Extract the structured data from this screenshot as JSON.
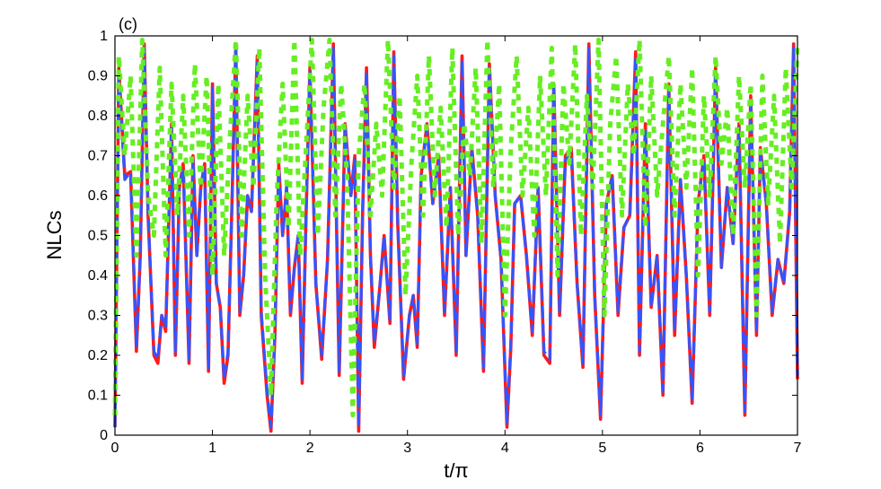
{
  "chart_data": {
    "type": "line",
    "panel_label": "(c)",
    "xlabel": "t/π",
    "ylabel": "NLCs",
    "xlim": [
      0,
      7
    ],
    "ylim": [
      0,
      1
    ],
    "xticks": [
      "0",
      "1",
      "2",
      "3",
      "4",
      "5",
      "6",
      "7"
    ],
    "yticks": [
      "0",
      "0.1",
      "0.2",
      "0.3",
      "0.4",
      "0.5",
      "0.6",
      "0.7",
      "0.8",
      "0.9",
      "1"
    ],
    "grid": false,
    "series": [
      {
        "color": "#ff1a1a",
        "style": "solid",
        "x": [
          0,
          0.04,
          0.1,
          0.16,
          0.22,
          0.26,
          0.3,
          0.34,
          0.4,
          0.44,
          0.48,
          0.52,
          0.58,
          0.62,
          0.66,
          0.7,
          0.76,
          0.8,
          0.84,
          0.88,
          0.92,
          0.96,
          1.0,
          1.04,
          1.08,
          1.12,
          1.16,
          1.2,
          1.24,
          1.28,
          1.32,
          1.36,
          1.4,
          1.46,
          1.5,
          1.56,
          1.6,
          1.64,
          1.68,
          1.72,
          1.76,
          1.8,
          1.84,
          1.88,
          1.92,
          1.96,
          2.0,
          2.06,
          2.12,
          2.18,
          2.24,
          2.3,
          2.36,
          2.42,
          2.46,
          2.5,
          2.54,
          2.58,
          2.62,
          2.66,
          2.72,
          2.76,
          2.82,
          2.86,
          2.9,
          2.96,
          3.02,
          3.06,
          3.1,
          3.14,
          3.2,
          3.26,
          3.32,
          3.38,
          3.44,
          3.5,
          3.56,
          3.6,
          3.66,
          3.72,
          3.78,
          3.84,
          3.9,
          3.96,
          4.02,
          4.06,
          4.1,
          4.16,
          4.22,
          4.28,
          4.34,
          4.4,
          4.46,
          4.5,
          4.56,
          4.62,
          4.68,
          4.74,
          4.8,
          4.86,
          4.92,
          4.98,
          5.04,
          5.1,
          5.16,
          5.22,
          5.28,
          5.34,
          5.38,
          5.44,
          5.5,
          5.56,
          5.62,
          5.68,
          5.74,
          5.8,
          5.86,
          5.92,
          5.98,
          6.04,
          6.1,
          6.16,
          6.22,
          6.28,
          6.34,
          6.4,
          6.46,
          6.52,
          6.58,
          6.62,
          6.68,
          6.74,
          6.8,
          6.86,
          6.92,
          6.96,
          7.0
        ],
        "y": [
          0.02,
          0.92,
          0.65,
          0.66,
          0.21,
          0.45,
          0.98,
          0.55,
          0.2,
          0.18,
          0.3,
          0.26,
          0.78,
          0.2,
          0.62,
          0.68,
          0.18,
          0.7,
          0.45,
          0.62,
          0.68,
          0.16,
          0.88,
          0.38,
          0.32,
          0.13,
          0.2,
          0.58,
          0.98,
          0.3,
          0.4,
          0.6,
          0.56,
          0.95,
          0.3,
          0.1,
          0.01,
          0.25,
          0.68,
          0.5,
          0.62,
          0.3,
          0.42,
          0.5,
          0.13,
          0.55,
          0.92,
          0.38,
          0.19,
          0.44,
          0.98,
          0.15,
          0.78,
          0.6,
          0.7,
          0.01,
          0.56,
          0.92,
          0.45,
          0.22,
          0.38,
          0.5,
          0.28,
          0.96,
          0.53,
          0.14,
          0.3,
          0.35,
          0.22,
          0.65,
          0.78,
          0.58,
          0.7,
          0.3,
          0.62,
          0.2,
          0.95,
          0.45,
          0.72,
          0.55,
          0.16,
          0.93,
          0.6,
          0.44,
          0.02,
          0.22,
          0.58,
          0.6,
          0.45,
          0.25,
          0.62,
          0.2,
          0.18,
          0.88,
          0.3,
          0.7,
          0.72,
          0.38,
          0.17,
          0.98,
          0.35,
          0.04,
          0.58,
          0.65,
          0.3,
          0.52,
          0.55,
          0.96,
          0.2,
          0.78,
          0.32,
          0.45,
          0.1,
          0.88,
          0.25,
          0.64,
          0.4,
          0.08,
          0.58,
          0.7,
          0.3,
          0.92,
          0.42,
          0.62,
          0.48,
          0.78,
          0.05,
          0.85,
          0.25,
          0.72,
          0.58,
          0.3,
          0.44,
          0.38,
          0.56,
          0.98,
          0.14
        ]
      },
      {
        "color": "#3355ff",
        "style": "dashed",
        "x": [
          0,
          0.04,
          0.1,
          0.16,
          0.22,
          0.26,
          0.3,
          0.34,
          0.4,
          0.44,
          0.48,
          0.52,
          0.58,
          0.62,
          0.66,
          0.7,
          0.76,
          0.8,
          0.84,
          0.88,
          0.92,
          0.96,
          1.0,
          1.04,
          1.08,
          1.12,
          1.16,
          1.2,
          1.24,
          1.28,
          1.32,
          1.36,
          1.4,
          1.46,
          1.5,
          1.56,
          1.6,
          1.64,
          1.68,
          1.72,
          1.76,
          1.8,
          1.84,
          1.88,
          1.92,
          1.96,
          2.0,
          2.06,
          2.12,
          2.18,
          2.24,
          2.3,
          2.36,
          2.42,
          2.46,
          2.5,
          2.54,
          2.58,
          2.62,
          2.66,
          2.72,
          2.76,
          2.82,
          2.86,
          2.9,
          2.96,
          3.02,
          3.06,
          3.1,
          3.14,
          3.2,
          3.26,
          3.32,
          3.38,
          3.44,
          3.5,
          3.56,
          3.6,
          3.66,
          3.72,
          3.78,
          3.84,
          3.9,
          3.96,
          4.02,
          4.06,
          4.1,
          4.16,
          4.22,
          4.28,
          4.34,
          4.4,
          4.46,
          4.5,
          4.56,
          4.62,
          4.68,
          4.74,
          4.8,
          4.86,
          4.92,
          4.98,
          5.04,
          5.1,
          5.16,
          5.22,
          5.28,
          5.34,
          5.38,
          5.44,
          5.5,
          5.56,
          5.62,
          5.68,
          5.74,
          5.8,
          5.86,
          5.92,
          5.98,
          6.04,
          6.1,
          6.16,
          6.22,
          6.28,
          6.34,
          6.4,
          6.46,
          6.52,
          6.58,
          6.62,
          6.68,
          6.74,
          6.8,
          6.86,
          6.92,
          6.96,
          7.0
        ],
        "y": [
          0.02,
          0.9,
          0.64,
          0.66,
          0.22,
          0.45,
          0.97,
          0.55,
          0.21,
          0.19,
          0.3,
          0.27,
          0.77,
          0.21,
          0.62,
          0.67,
          0.19,
          0.69,
          0.45,
          0.62,
          0.67,
          0.17,
          0.87,
          0.38,
          0.32,
          0.14,
          0.21,
          0.58,
          0.97,
          0.31,
          0.4,
          0.6,
          0.56,
          0.94,
          0.31,
          0.11,
          0.02,
          0.26,
          0.67,
          0.5,
          0.62,
          0.31,
          0.42,
          0.5,
          0.14,
          0.55,
          0.91,
          0.38,
          0.2,
          0.44,
          0.97,
          0.16,
          0.77,
          0.6,
          0.69,
          0.02,
          0.56,
          0.91,
          0.45,
          0.23,
          0.38,
          0.5,
          0.29,
          0.95,
          0.53,
          0.15,
          0.3,
          0.35,
          0.23,
          0.65,
          0.77,
          0.58,
          0.69,
          0.31,
          0.62,
          0.21,
          0.94,
          0.45,
          0.71,
          0.55,
          0.17,
          0.92,
          0.6,
          0.44,
          0.03,
          0.23,
          0.58,
          0.6,
          0.45,
          0.26,
          0.62,
          0.21,
          0.19,
          0.87,
          0.31,
          0.69,
          0.71,
          0.38,
          0.18,
          0.97,
          0.35,
          0.05,
          0.58,
          0.65,
          0.31,
          0.52,
          0.55,
          0.95,
          0.21,
          0.77,
          0.32,
          0.45,
          0.11,
          0.87,
          0.26,
          0.64,
          0.4,
          0.09,
          0.58,
          0.69,
          0.31,
          0.91,
          0.42,
          0.62,
          0.48,
          0.77,
          0.06,
          0.84,
          0.26,
          0.71,
          0.58,
          0.31,
          0.44,
          0.38,
          0.56,
          0.97,
          0.15
        ]
      },
      {
        "color": "#66ee22",
        "style": "dotted",
        "x": [
          0,
          0.04,
          0.1,
          0.16,
          0.22,
          0.28,
          0.34,
          0.4,
          0.46,
          0.52,
          0.58,
          0.64,
          0.7,
          0.76,
          0.82,
          0.88,
          0.94,
          1.0,
          1.06,
          1.12,
          1.18,
          1.24,
          1.3,
          1.36,
          1.42,
          1.48,
          1.54,
          1.6,
          1.66,
          1.72,
          1.78,
          1.84,
          1.9,
          1.96,
          2.02,
          2.08,
          2.14,
          2.2,
          2.26,
          2.32,
          2.38,
          2.44,
          2.5,
          2.56,
          2.62,
          2.68,
          2.74,
          2.8,
          2.86,
          2.92,
          2.98,
          3.04,
          3.1,
          3.16,
          3.22,
          3.28,
          3.34,
          3.4,
          3.46,
          3.52,
          3.58,
          3.64,
          3.7,
          3.76,
          3.82,
          3.88,
          3.94,
          4.0,
          4.06,
          4.12,
          4.18,
          4.24,
          4.3,
          4.36,
          4.42,
          4.48,
          4.54,
          4.6,
          4.66,
          4.72,
          4.78,
          4.84,
          4.9,
          4.96,
          5.02,
          5.08,
          5.14,
          5.2,
          5.26,
          5.32,
          5.38,
          5.44,
          5.5,
          5.56,
          5.62,
          5.68,
          5.74,
          5.8,
          5.86,
          5.92,
          5.98,
          6.04,
          6.1,
          6.16,
          6.22,
          6.28,
          6.34,
          6.4,
          6.46,
          6.52,
          6.58,
          6.64,
          6.7,
          6.76,
          6.82,
          6.88,
          6.94,
          7.0
        ],
        "y": [
          0.05,
          0.95,
          0.7,
          0.9,
          0.45,
          0.99,
          0.6,
          0.5,
          0.92,
          0.45,
          0.88,
          0.55,
          0.85,
          0.5,
          0.93,
          0.62,
          0.9,
          0.4,
          0.88,
          0.45,
          0.75,
          0.99,
          0.5,
          0.85,
          0.62,
          0.97,
          0.4,
          0.1,
          0.6,
          0.88,
          0.52,
          0.99,
          0.45,
          0.72,
          0.99,
          0.5,
          0.82,
          0.99,
          0.55,
          0.88,
          0.65,
          0.05,
          0.7,
          0.88,
          0.55,
          0.78,
          0.6,
          0.99,
          0.62,
          0.85,
          0.35,
          0.68,
          0.9,
          0.55,
          0.95,
          0.6,
          0.82,
          0.52,
          0.97,
          0.5,
          0.78,
          0.65,
          0.92,
          0.48,
          0.99,
          0.62,
          0.88,
          0.3,
          0.72,
          0.95,
          0.6,
          0.82,
          0.5,
          0.9,
          0.6,
          0.97,
          0.4,
          0.88,
          0.68,
          0.98,
          0.5,
          0.85,
          0.62,
          0.99,
          0.3,
          0.78,
          0.95,
          0.55,
          0.88,
          0.7,
          0.99,
          0.52,
          0.9,
          0.6,
          0.78,
          0.95,
          0.55,
          0.88,
          0.62,
          0.92,
          0.4,
          0.85,
          0.6,
          0.95,
          0.68,
          0.82,
          0.5,
          0.9,
          0.62,
          0.88,
          0.3,
          0.9,
          0.58,
          0.85,
          0.48,
          0.92,
          0.62,
          0.98
        ]
      }
    ]
  }
}
